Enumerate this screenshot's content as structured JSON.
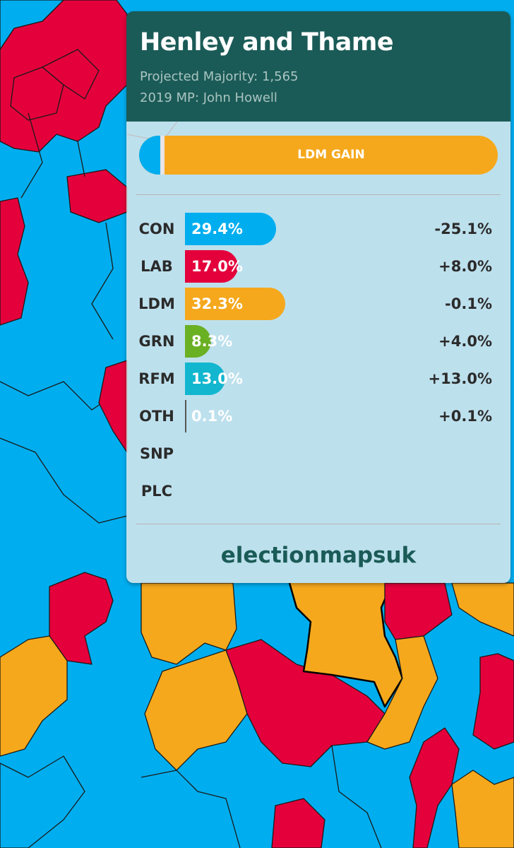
{
  "colors": {
    "con": "#00aeef",
    "lab": "#e4003b",
    "ldm": "#f5a81c",
    "grn": "#6ab023",
    "rfm": "#12b6cf",
    "oth": "#888888",
    "header": "#1b5b57"
  },
  "header": {
    "title": "Henley and Thame",
    "majority": "Projected Majority: 1,565",
    "mp": "2019 MP: John Howell"
  },
  "result": {
    "label": "LDM GAIN",
    "from_party": "CON",
    "to_party": "LDM"
  },
  "parties": [
    {
      "code": "CON",
      "share": 29.4,
      "share_label": "29.4%",
      "change": "-25.1%",
      "color": "#00aeef"
    },
    {
      "code": "LAB",
      "share": 17.0,
      "share_label": "17.0%",
      "change": "+8.0%",
      "color": "#e4003b"
    },
    {
      "code": "LDM",
      "share": 32.3,
      "share_label": "32.3%",
      "change": "-0.1%",
      "color": "#f5a81c"
    },
    {
      "code": "GRN",
      "share": 8.3,
      "share_label": "8.3%",
      "change": "+4.0%",
      "color": "#6ab023"
    },
    {
      "code": "RFM",
      "share": 13.0,
      "share_label": "13.0%",
      "change": "+13.0%",
      "color": "#12b6cf"
    },
    {
      "code": "OTH",
      "share": 0.1,
      "share_label": "0.1%",
      "change": "+0.1%",
      "color": "#888888"
    },
    {
      "code": "SNP",
      "share": null,
      "share_label": "",
      "change": "",
      "color": ""
    },
    {
      "code": "PLC",
      "share": null,
      "share_label": "",
      "change": "",
      "color": ""
    }
  ],
  "brand": "electionmapsuk"
}
